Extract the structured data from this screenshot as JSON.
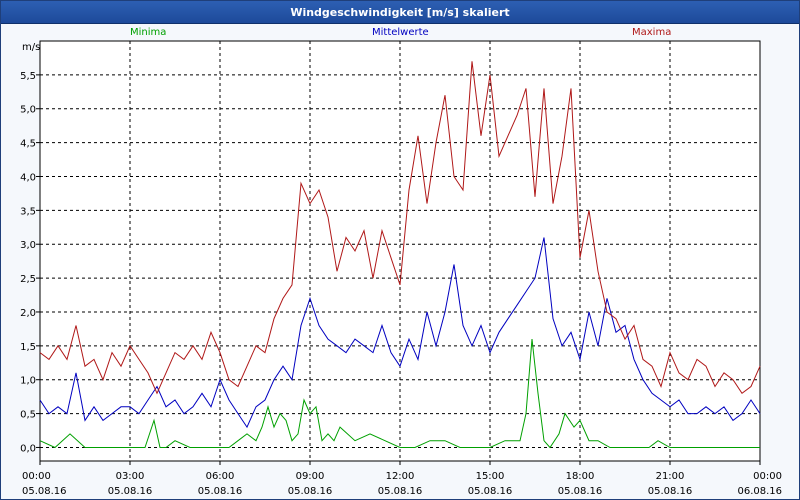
{
  "window": {
    "title": "Windgeschwindigkeit [m/s] skaliert"
  },
  "chart_data": {
    "type": "line",
    "title": "Windgeschwindigkeit [m/s] skaliert",
    "ylabel": "m/s",
    "ylim": [
      -0.2,
      6.0
    ],
    "yticks": [
      "0,0",
      "0,5",
      "1,0",
      "1,5",
      "2,0",
      "2,5",
      "3,0",
      "3,5",
      "4,0",
      "4,5",
      "5,0",
      "5,5"
    ],
    "ytick_values": [
      0,
      0.5,
      1,
      1.5,
      2,
      2.5,
      3,
      3.5,
      4,
      4.5,
      5,
      5.5
    ],
    "xlim": [
      0,
      24
    ],
    "xticks": [
      {
        "time": "00:00",
        "date": "05.08.16",
        "hour": 0
      },
      {
        "time": "03:00",
        "date": "05.08.16",
        "hour": 3
      },
      {
        "time": "06:00",
        "date": "05.08.16",
        "hour": 6
      },
      {
        "time": "09:00",
        "date": "05.08.16",
        "hour": 9
      },
      {
        "time": "12:00",
        "date": "05.08.16",
        "hour": 12
      },
      {
        "time": "15:00",
        "date": "05.08.16",
        "hour": 15
      },
      {
        "time": "18:00",
        "date": "05.08.16",
        "hour": 18
      },
      {
        "time": "21:00",
        "date": "05.08.16",
        "hour": 21
      },
      {
        "time": "00:00",
        "date": "06.08.16",
        "hour": 24
      }
    ],
    "grid": true,
    "legend_position": "top",
    "series": [
      {
        "name": "Minima",
        "color": "#00a000",
        "x": [
          0,
          0.5,
          1,
          1.5,
          2,
          3,
          3.5,
          3.8,
          4,
          4.2,
          4.5,
          5,
          6,
          6.3,
          6.6,
          6.9,
          7.2,
          7.4,
          7.6,
          7.8,
          8,
          8.2,
          8.4,
          8.6,
          8.8,
          9,
          9.2,
          9.4,
          9.6,
          9.8,
          10,
          10.5,
          11,
          11.5,
          12,
          12.5,
          13,
          13.5,
          14,
          14.5,
          15,
          15.5,
          16,
          16.2,
          16.4,
          16.6,
          16.8,
          17,
          17.3,
          17.5,
          17.8,
          18,
          18.3,
          18.6,
          19,
          19.5,
          20,
          20.3,
          20.6,
          21,
          21.5,
          22,
          22.5,
          23,
          23.5,
          24
        ],
        "y": [
          0.1,
          0,
          0.2,
          0,
          0,
          0,
          0,
          0.4,
          0,
          0,
          0.1,
          0,
          0,
          0,
          0.1,
          0.2,
          0.1,
          0.3,
          0.6,
          0.3,
          0.5,
          0.4,
          0.1,
          0.2,
          0.7,
          0.5,
          0.6,
          0.1,
          0.2,
          0.1,
          0.3,
          0.1,
          0.2,
          0.1,
          0,
          0,
          0.1,
          0.1,
          0,
          0,
          0,
          0.1,
          0.1,
          0.5,
          1.6,
          0.8,
          0.1,
          0,
          0.2,
          0.5,
          0.3,
          0.4,
          0.1,
          0.1,
          0,
          0,
          0,
          0,
          0.1,
          0,
          0,
          0,
          0,
          0,
          0,
          0
        ]
      },
      {
        "name": "Mittelwerte",
        "color": "#0000c0",
        "x": [
          0,
          0.3,
          0.6,
          0.9,
          1.2,
          1.5,
          1.8,
          2.1,
          2.4,
          2.7,
          3,
          3.3,
          3.6,
          3.9,
          4.2,
          4.5,
          4.8,
          5.1,
          5.4,
          5.7,
          6,
          6.3,
          6.6,
          6.9,
          7.2,
          7.5,
          7.8,
          8.1,
          8.4,
          8.7,
          9,
          9.3,
          9.6,
          9.9,
          10.2,
          10.5,
          10.8,
          11.1,
          11.4,
          11.7,
          12,
          12.3,
          12.6,
          12.9,
          13.2,
          13.5,
          13.8,
          14.1,
          14.4,
          14.7,
          15,
          15.3,
          15.6,
          15.9,
          16.2,
          16.5,
          16.8,
          17.1,
          17.4,
          17.7,
          18,
          18.3,
          18.6,
          18.9,
          19.2,
          19.5,
          19.8,
          20.1,
          20.4,
          20.7,
          21,
          21.3,
          21.6,
          21.9,
          22.2,
          22.5,
          22.8,
          23.1,
          23.4,
          23.7,
          24
        ],
        "y": [
          0.7,
          0.5,
          0.6,
          0.5,
          1.1,
          0.4,
          0.6,
          0.4,
          0.5,
          0.6,
          0.6,
          0.5,
          0.7,
          0.9,
          0.6,
          0.7,
          0.5,
          0.6,
          0.8,
          0.6,
          1.0,
          0.7,
          0.5,
          0.3,
          0.6,
          0.7,
          1.0,
          1.2,
          1.0,
          1.8,
          2.2,
          1.8,
          1.6,
          1.5,
          1.4,
          1.6,
          1.5,
          1.4,
          1.8,
          1.4,
          1.2,
          1.6,
          1.3,
          2.0,
          1.5,
          2.0,
          2.7,
          1.8,
          1.5,
          1.8,
          1.4,
          1.7,
          1.9,
          2.1,
          2.3,
          2.5,
          3.1,
          1.9,
          1.5,
          1.7,
          1.3,
          2.0,
          1.5,
          2.2,
          1.7,
          1.8,
          1.3,
          1.0,
          0.8,
          0.7,
          0.6,
          0.7,
          0.5,
          0.5,
          0.6,
          0.5,
          0.6,
          0.4,
          0.5,
          0.7,
          0.5
        ]
      },
      {
        "name": "Maxima",
        "color": "#b01818",
        "x": [
          0,
          0.3,
          0.6,
          0.9,
          1.2,
          1.5,
          1.8,
          2.1,
          2.4,
          2.7,
          3,
          3.3,
          3.6,
          3.9,
          4.2,
          4.5,
          4.8,
          5.1,
          5.4,
          5.7,
          6,
          6.3,
          6.6,
          6.9,
          7.2,
          7.5,
          7.8,
          8.1,
          8.4,
          8.7,
          9,
          9.3,
          9.6,
          9.9,
          10.2,
          10.5,
          10.8,
          11.1,
          11.4,
          11.7,
          12,
          12.3,
          12.6,
          12.9,
          13.2,
          13.5,
          13.8,
          14.1,
          14.4,
          14.7,
          15,
          15.3,
          15.6,
          15.9,
          16.2,
          16.5,
          16.8,
          17.1,
          17.4,
          17.7,
          18,
          18.3,
          18.6,
          18.9,
          19.2,
          19.5,
          19.8,
          20.1,
          20.4,
          20.7,
          21,
          21.3,
          21.6,
          21.9,
          22.2,
          22.5,
          22.8,
          23.1,
          23.4,
          23.7,
          24
        ],
        "y": [
          1.4,
          1.3,
          1.5,
          1.3,
          1.8,
          1.2,
          1.3,
          1.0,
          1.4,
          1.2,
          1.5,
          1.3,
          1.1,
          0.8,
          1.1,
          1.4,
          1.3,
          1.5,
          1.3,
          1.7,
          1.4,
          1.0,
          0.9,
          1.2,
          1.5,
          1.4,
          1.9,
          2.2,
          2.4,
          3.9,
          3.6,
          3.8,
          3.4,
          2.6,
          3.1,
          2.9,
          3.2,
          2.5,
          3.2,
          2.8,
          2.4,
          3.8,
          4.6,
          3.6,
          4.5,
          5.2,
          4.0,
          3.8,
          5.7,
          4.6,
          5.5,
          4.3,
          4.6,
          4.9,
          5.3,
          3.7,
          5.3,
          3.6,
          4.3,
          5.3,
          2.8,
          3.5,
          2.6,
          2.0,
          1.9,
          1.6,
          1.8,
          1.3,
          1.2,
          0.9,
          1.4,
          1.1,
          1.0,
          1.3,
          1.2,
          0.9,
          1.1,
          1.0,
          0.8,
          0.9,
          1.2
        ]
      }
    ]
  }
}
